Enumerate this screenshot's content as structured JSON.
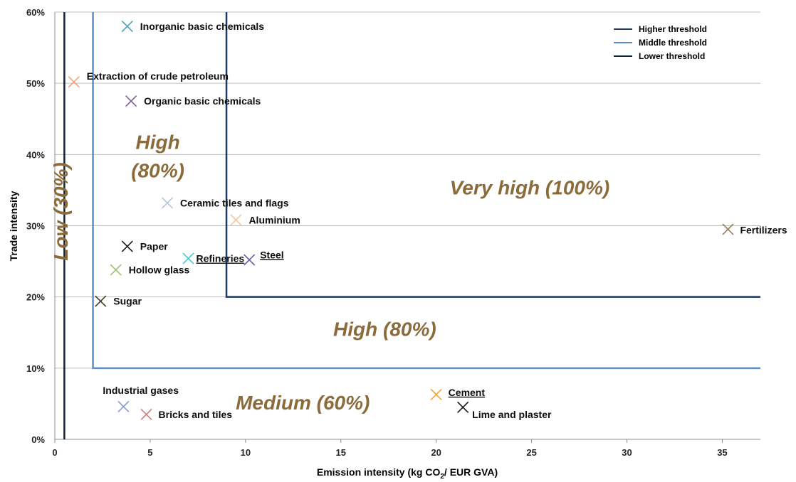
{
  "chart_data": {
    "type": "scatter",
    "xlabel_main": "Emission intensity (kg CO",
    "xlabel_sub": "2",
    "xlabel_tail": "/ EUR GVA)",
    "ylabel": "Trade intensity",
    "xlim": [
      0,
      37
    ],
    "ylim": [
      0,
      0.6
    ],
    "x_ticks": [
      {
        "value": 0,
        "label": "0"
      },
      {
        "value": 5,
        "label": "5"
      },
      {
        "value": 10,
        "label": "10"
      },
      {
        "value": 15,
        "label": "15"
      },
      {
        "value": 20,
        "label": "20"
      },
      {
        "value": 25,
        "label": "25"
      },
      {
        "value": 30,
        "label": "30"
      },
      {
        "value": 35,
        "label": "35"
      }
    ],
    "y_ticks": [
      {
        "value": 0,
        "label": "0%"
      },
      {
        "value": 0.1,
        "label": "10%"
      },
      {
        "value": 0.2,
        "label": "20%"
      },
      {
        "value": 0.3,
        "label": "30%"
      },
      {
        "value": 0.4,
        "label": "40%"
      },
      {
        "value": 0.5,
        "label": "50%"
      },
      {
        "value": 0.6,
        "label": "60%"
      }
    ],
    "grid": "horizontal",
    "legend_position": "top-right",
    "thresholds": [
      {
        "name": "Higher threshold",
        "color": "#1f3a5f",
        "x": 9,
        "y": 0.2
      },
      {
        "name": "Middle threshold",
        "color": "#5b8ec9",
        "x": 2,
        "y": 0.1
      },
      {
        "name": "Lower threshold",
        "color": "#0f2338",
        "x": 0.5
      }
    ],
    "points": [
      {
        "label": "Inorganic basic chemicals",
        "x": 3.8,
        "y": 0.58,
        "color": "#4aa0b5",
        "underline": false
      },
      {
        "label": "Extraction of crude petroleum",
        "x": 1.0,
        "y": 0.502,
        "color": "#f4a27a",
        "underline": false
      },
      {
        "label": "Organic basic chemicals",
        "x": 4.0,
        "y": 0.475,
        "color": "#7d5e96",
        "underline": false
      },
      {
        "label": "Ceramic tiles and flags",
        "x": 5.9,
        "y": 0.332,
        "color": "#b5c3e0",
        "underline": false
      },
      {
        "label": "Aluminium",
        "x": 9.5,
        "y": 0.308,
        "color": "#f7c6a0",
        "underline": false
      },
      {
        "label": "Paper",
        "x": 3.8,
        "y": 0.271,
        "color": "#1a1a1a",
        "underline": false
      },
      {
        "label": "Refineries",
        "x": 7.0,
        "y": 0.254,
        "color": "#4cc7cf",
        "underline": true
      },
      {
        "label": "Steel",
        "x": 10.2,
        "y": 0.252,
        "color": "#6b5a9a",
        "underline": true
      },
      {
        "label": "Hollow glass",
        "x": 3.2,
        "y": 0.238,
        "color": "#9bc27a",
        "underline": false
      },
      {
        "label": "Sugar",
        "x": 2.4,
        "y": 0.194,
        "color": "#3a3a2a",
        "underline": false
      },
      {
        "label": "Fertilizers",
        "x": 35.3,
        "y": 0.295,
        "color": "#9a7a52",
        "underline": false
      },
      {
        "label": "Industrial gases",
        "x": 3.6,
        "y": 0.046,
        "color": "#8a9ad0",
        "underline": false
      },
      {
        "label": "Bricks and tiles",
        "x": 4.8,
        "y": 0.035,
        "color": "#c78080",
        "underline": false
      },
      {
        "label": "Cement",
        "x": 20.0,
        "y": 0.063,
        "color": "#f5a623",
        "underline": true
      },
      {
        "label": "Lime and plaster",
        "x": 21.4,
        "y": 0.045,
        "color": "#1a1a1a",
        "underline": false
      }
    ],
    "regions": [
      {
        "label": "Very high (100%)",
        "x": 24.9,
        "y": 0.354
      },
      {
        "label": "High (80%)",
        "x": 17.3,
        "y": 0.155
      },
      {
        "label": "Medium (60%)",
        "x": 13.0,
        "y": 0.052
      },
      {
        "label": "High",
        "x": 5.4,
        "y": 0.418
      },
      {
        "label": "(80%)",
        "x": 5.4,
        "y": 0.378
      },
      {
        "label": "Low (30%)",
        "x": 0.3,
        "y": 0.32,
        "rotate": true
      }
    ]
  }
}
